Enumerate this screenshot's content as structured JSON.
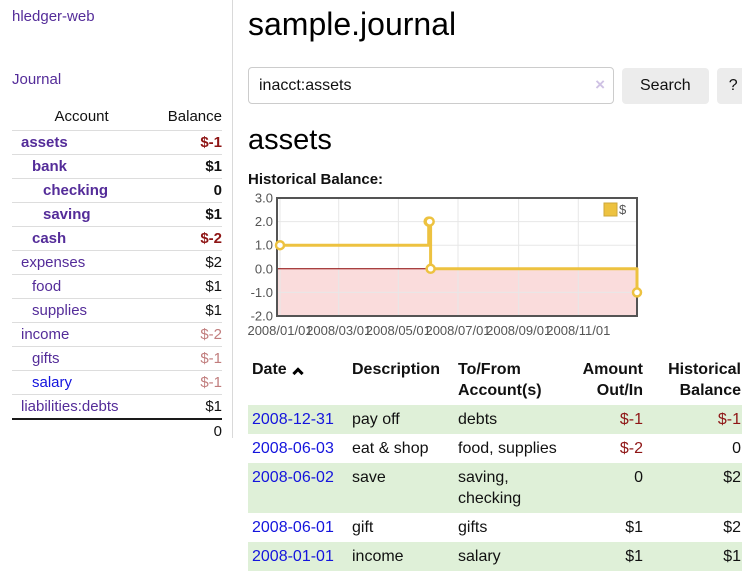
{
  "sidebar": {
    "brand": "hledger-web",
    "nav_journal": "Journal",
    "table": {
      "account_header": "Account",
      "balance_header": "Balance",
      "accounts": [
        {
          "name": "assets",
          "balance": "$-1",
          "depth": 1
        },
        {
          "name": "bank",
          "balance": "$1",
          "depth": 2
        },
        {
          "name": "checking",
          "balance": "0",
          "depth": 3
        },
        {
          "name": "saving",
          "balance": "$1",
          "depth": 3
        },
        {
          "name": "cash",
          "balance": "$-2",
          "depth": 2
        },
        {
          "name": "expenses",
          "balance": "$2",
          "depth": 1
        },
        {
          "name": "food",
          "balance": "$1",
          "depth": 2
        },
        {
          "name": "supplies",
          "balance": "$1",
          "depth": 2
        },
        {
          "name": "income",
          "balance": "$-2",
          "depth": 1
        },
        {
          "name": "gifts",
          "balance": "$-1",
          "depth": 2
        },
        {
          "name": "salary",
          "balance": "$-1",
          "depth": 2
        },
        {
          "name": "liabilities:debts",
          "balance": "$1",
          "depth": 1
        }
      ],
      "total": "0"
    }
  },
  "header": {
    "title": "sample.journal"
  },
  "search": {
    "value": "inacct:assets",
    "clear_icon": "×",
    "button_label": "Search",
    "help_label": "?"
  },
  "account_page": {
    "heading": "assets",
    "chart_label": "Historical Balance:"
  },
  "chart_data": {
    "type": "line",
    "step": true,
    "title": "Historical Balance",
    "series": [
      {
        "name": "$",
        "color": "#EDC240",
        "points": [
          [
            "2008-01-01",
            1
          ],
          [
            "2008-06-01",
            2
          ],
          [
            "2008-06-02",
            2
          ],
          [
            "2008-06-03",
            0
          ],
          [
            "2008-12-31",
            -1
          ]
        ]
      }
    ],
    "xticks": [
      "2008/01/01",
      "2008/03/01",
      "2008/05/01",
      "2008/07/01",
      "2008/09/01",
      "2008/11/01"
    ],
    "yticks": [
      3.0,
      2.0,
      1.0,
      0.0,
      -1.0,
      -2.0
    ],
    "ylim": [
      -2,
      3
    ],
    "xlim": [
      "2008-01-01",
      "2008-12-31"
    ],
    "grid": true,
    "legend_position": "top-right",
    "legend_label": "$",
    "negative_region_color": "#fadcdc",
    "zero_line_color": "#8b0000",
    "axis_text_color": "#545454",
    "border_color": "#545454",
    "grid_color": "#e7e7e7"
  },
  "register": {
    "columns": [
      "Date",
      "Description",
      "To/From Account(s)",
      "Amount Out/In",
      "Historical Balance"
    ],
    "rows": [
      {
        "date": "2008-12-31",
        "description": "pay off",
        "accounts": "debts",
        "amount": "$-1",
        "balance": "$-1"
      },
      {
        "date": "2008-06-03",
        "description": "eat & shop",
        "accounts": "food, supplies",
        "amount": "$-2",
        "balance": "0"
      },
      {
        "date": "2008-06-02",
        "description": "save",
        "accounts": "saving, checking",
        "amount": "0",
        "balance": "$2"
      },
      {
        "date": "2008-06-01",
        "description": "gift",
        "accounts": "gifts",
        "amount": "$1",
        "balance": "$2"
      },
      {
        "date": "2008-01-01",
        "description": "income",
        "accounts": "salary",
        "amount": "$1",
        "balance": "$1"
      }
    ]
  }
}
